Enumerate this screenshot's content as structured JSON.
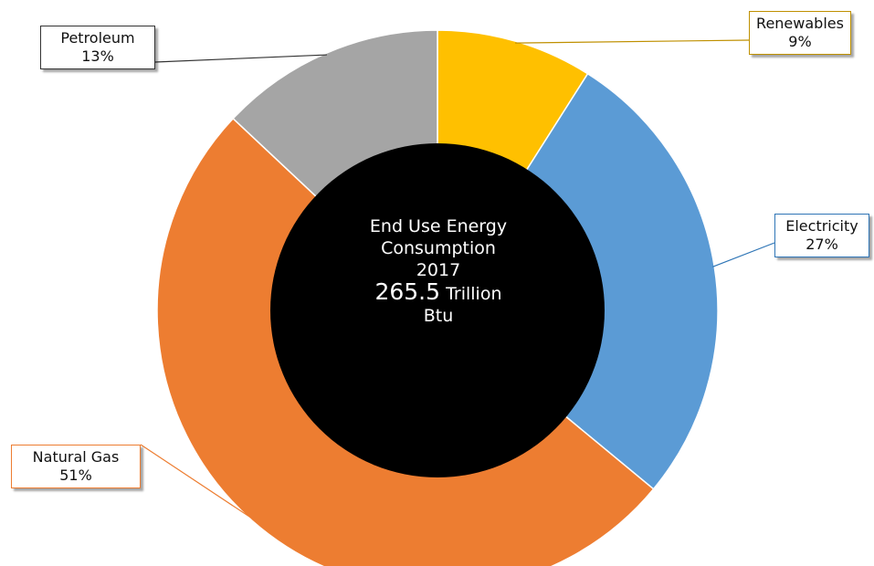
{
  "chart_data": {
    "type": "pie",
    "donut": true,
    "categories": [
      "Renewables",
      "Electricity",
      "Natural Gas",
      "Petroleum"
    ],
    "values": [
      9,
      27,
      51,
      13
    ],
    "value_labels": [
      "9%",
      "27%",
      "51%",
      "13%"
    ],
    "colors": [
      "#FFC000",
      "#5B9BD5",
      "#ED7D31",
      "#A5A5A5"
    ],
    "center_label": {
      "line1": "End Use Energy",
      "line2": "Consumption",
      "line3": "2017",
      "value": "265.5",
      "unit": "Trillion",
      "unit2": "Btu"
    },
    "center_color": "#000000",
    "legend": "none"
  }
}
